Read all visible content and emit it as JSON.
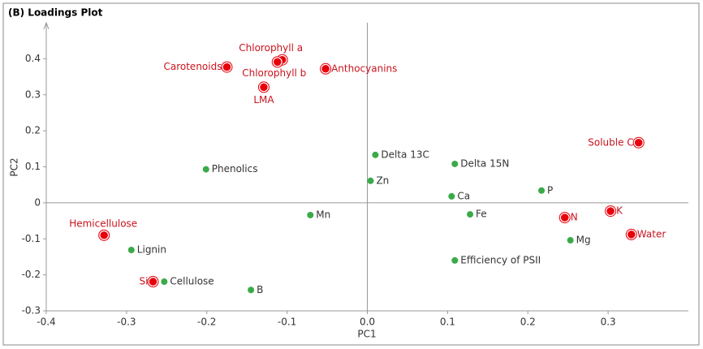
{
  "chart_data": {
    "type": "scatter",
    "title": "(B) Loadings Plot",
    "xlabel": "PC1",
    "ylabel": "PC2",
    "xlim": [
      -0.4,
      0.4
    ],
    "ylim": [
      -0.3,
      0.5
    ],
    "xticks": [
      -0.4,
      -0.3,
      -0.2,
      -0.1,
      {
        "value": 0,
        "label": "0.0"
      },
      0.1,
      0.2,
      0.3
    ],
    "yticks": [
      -0.3,
      -0.2,
      -0.1,
      0,
      0.1,
      0.2,
      0.3,
      0.4
    ],
    "series": [
      {
        "color": "#e8000b",
        "labels": [
          "Carotenoids",
          "Chlorophyll a",
          "Chlorophyll b",
          "Anthocyanins",
          "LMA",
          "Soluble C",
          "K",
          "N",
          "Water",
          "Hemicellulose",
          "Si"
        ],
        "x": [
          -0.175,
          -0.106,
          -0.112,
          -0.052,
          -0.129,
          0.338,
          0.303,
          0.246,
          0.329,
          -0.328,
          -0.267
        ],
        "y": [
          0.377,
          0.397,
          0.391,
          0.372,
          0.321,
          0.167,
          -0.023,
          -0.041,
          -0.088,
          -0.09,
          -0.219
        ]
      },
      {
        "color": "#3aaa48",
        "labels": [
          "Phenolics",
          "Delta 13C",
          "Delta 15N",
          "Zn",
          "P",
          "Ca",
          "Fe",
          "Mn",
          "Mg",
          "Lignin",
          "Efficiency of PSII",
          "Cellulose",
          "B"
        ],
        "x": [
          -0.201,
          0.01,
          0.109,
          0.004,
          0.217,
          0.105,
          0.128,
          -0.071,
          0.253,
          -0.294,
          0.109,
          -0.253,
          -0.145
        ],
        "y": [
          0.093,
          0.133,
          0.108,
          0.061,
          0.034,
          0.018,
          -0.032,
          -0.034,
          -0.104,
          -0.131,
          -0.16,
          -0.219,
          -0.242
        ]
      }
    ]
  }
}
